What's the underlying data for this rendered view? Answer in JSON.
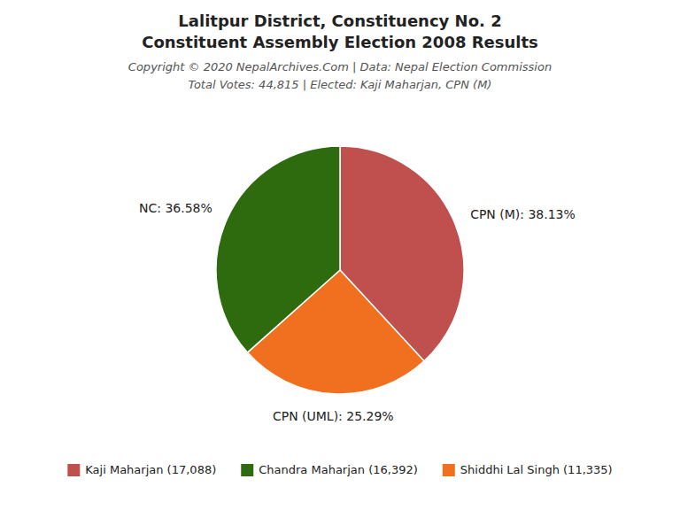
{
  "chart_data": {
    "type": "pie",
    "title": [
      "Lalitpur District, Constituency No. 2",
      "Constituent Assembly Election 2008 Results"
    ],
    "subtitle": [
      "Copyright © 2020 NepalArchives.Com | Data: Nepal Election Commission",
      "Total Votes: 44,815 | Elected: Kaji Maharjan, CPN (M)"
    ],
    "categories": [
      "CPN (M)",
      "CPN (UML)",
      "NC"
    ],
    "values": [
      38.13,
      25.29,
      36.58
    ],
    "value_labels": [
      "CPN (M): 38.13%",
      "CPN (UML): 25.29%",
      "NC: 36.58%"
    ],
    "colors": [
      "#c0504d",
      "#f07020",
      "#2e6b0e"
    ],
    "data_labels": true,
    "legend": "bottom",
    "legend_entries": [
      {
        "label": "Kaji Maharjan (17,088)",
        "color": "#c0504d"
      },
      {
        "label": "Chandra Maharjan (16,392)",
        "color": "#2e6b0e"
      },
      {
        "label": "Shiddhi Lal Singh (11,335)",
        "color": "#f07020"
      }
    ]
  }
}
